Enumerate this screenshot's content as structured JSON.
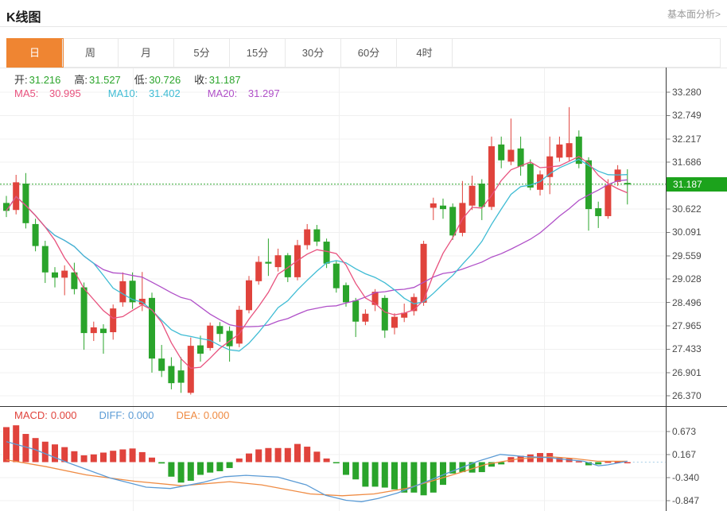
{
  "header": {
    "title": "K线图",
    "link": "基本面分析>"
  },
  "tabs": [
    {
      "label": "日",
      "active": true
    },
    {
      "label": "周",
      "active": false
    },
    {
      "label": "月",
      "active": false
    },
    {
      "label": "5分",
      "active": false
    },
    {
      "label": "15分",
      "active": false
    },
    {
      "label": "30分",
      "active": false
    },
    {
      "label": "60分",
      "active": false
    },
    {
      "label": "4时",
      "active": false
    }
  ],
  "info": {
    "open_label": "开:",
    "open": "31.216",
    "high_label": "高:",
    "high": "31.527",
    "low_label": "低:",
    "low": "30.726",
    "close_label": "收:",
    "close": "31.187"
  },
  "ma": {
    "ma5_label": "MA5:",
    "ma5_value": "30.995",
    "ma10_label": "MA10:",
    "ma10_value": "31.402",
    "ma20_label": "MA20:",
    "ma20_value": "31.297"
  },
  "macd_info": {
    "macd_label": "MACD:",
    "macd_value": "0.000",
    "diff_label": "DIFF:",
    "diff_value": "0.000",
    "dea_label": "DEA:",
    "dea_value": "0.000"
  },
  "colors": {
    "up": "#e0433c",
    "down": "#2aa42b",
    "ma5": "#e8527e",
    "ma10": "#3fbcd4",
    "ma20": "#b050c8",
    "diff": "#5b9bd5",
    "dea": "#ef8b43",
    "price_line": "#2aa42b",
    "price_tag_bg": "#1ca31c",
    "tab_active_bg": "#ef8532",
    "value_green": "#2ba52b",
    "grid": "#f0f0f0",
    "axis": "#3a3a3a",
    "zero_proj": "#a9cfe8"
  },
  "chart_data": {
    "type": "candlestick+macd",
    "main": {
      "title": "K线图",
      "period": "日",
      "y_axis": [
        33.28,
        32.749,
        32.217,
        31.686,
        30.622,
        30.091,
        29.559,
        29.028,
        28.496,
        27.965,
        27.433,
        26.901,
        26.37
      ],
      "current_price": 31.187,
      "ohlc_last": {
        "open": 31.216,
        "high": 31.527,
        "low": 30.726,
        "close": 31.187
      },
      "ma_periods": [
        5,
        10,
        20
      ],
      "ma_last_values": {
        "ma5": 30.995,
        "ma10": 31.402,
        "ma20": 31.297
      },
      "candles": [
        [
          30.76,
          30.92,
          30.44,
          30.58
        ],
        [
          30.6,
          31.4,
          30.5,
          31.23
        ],
        [
          31.2,
          31.44,
          30.18,
          30.3
        ],
        [
          30.28,
          30.4,
          29.66,
          29.78
        ],
        [
          29.78,
          29.9,
          28.94,
          29.18
        ],
        [
          29.18,
          29.3,
          28.84,
          29.06
        ],
        [
          29.06,
          29.34,
          28.66,
          29.22
        ],
        [
          29.18,
          29.4,
          28.68,
          28.8
        ],
        [
          28.84,
          28.95,
          27.42,
          27.8
        ],
        [
          27.8,
          28.06,
          27.62,
          27.93
        ],
        [
          27.9,
          28.0,
          27.33,
          27.8
        ],
        [
          27.82,
          28.45,
          27.65,
          28.36
        ],
        [
          28.5,
          29.18,
          28.4,
          28.98
        ],
        [
          28.99,
          29.18,
          28.35,
          28.5
        ],
        [
          28.45,
          29.19,
          28.3,
          28.58
        ],
        [
          28.6,
          28.72,
          26.9,
          27.22
        ],
        [
          27.22,
          27.53,
          26.8,
          26.94
        ],
        [
          27.05,
          27.25,
          26.52,
          26.66
        ],
        [
          26.95,
          27.25,
          26.44,
          26.67
        ],
        [
          26.44,
          27.7,
          26.4,
          27.51
        ],
        [
          27.52,
          27.74,
          27.15,
          27.33
        ],
        [
          27.46,
          28.04,
          27.4,
          27.97
        ],
        [
          27.96,
          28.05,
          27.6,
          27.78
        ],
        [
          27.85,
          27.95,
          27.15,
          27.5
        ],
        [
          27.56,
          28.42,
          27.48,
          28.33
        ],
        [
          28.32,
          29.1,
          28.25,
          29.0
        ],
        [
          28.98,
          29.55,
          28.9,
          29.42
        ],
        [
          29.42,
          29.95,
          29.1,
          29.38
        ],
        [
          29.3,
          29.72,
          29.2,
          29.57
        ],
        [
          29.57,
          29.62,
          28.96,
          29.07
        ],
        [
          29.07,
          29.92,
          29.0,
          29.8
        ],
        [
          29.8,
          30.28,
          29.7,
          30.16
        ],
        [
          30.16,
          30.26,
          29.78,
          29.88
        ],
        [
          29.88,
          29.95,
          29.28,
          29.38
        ],
        [
          29.38,
          29.45,
          28.72,
          28.82
        ],
        [
          28.89,
          28.95,
          28.4,
          28.5
        ],
        [
          28.54,
          28.6,
          27.71,
          28.06
        ],
        [
          28.06,
          28.34,
          27.98,
          28.24
        ],
        [
          28.44,
          28.8,
          28.3,
          28.74
        ],
        [
          28.6,
          28.66,
          27.69,
          27.86
        ],
        [
          27.92,
          28.25,
          27.77,
          28.17
        ],
        [
          28.15,
          28.47,
          28.05,
          28.26
        ],
        [
          28.3,
          28.7,
          28.2,
          28.62
        ],
        [
          28.49,
          29.9,
          28.42,
          29.83
        ],
        [
          30.65,
          30.88,
          30.37,
          30.75
        ],
        [
          30.7,
          30.86,
          30.4,
          30.62
        ],
        [
          30.67,
          30.75,
          29.92,
          30.02
        ],
        [
          30.08,
          31.26,
          30.0,
          30.76
        ],
        [
          30.7,
          31.38,
          30.6,
          31.15
        ],
        [
          31.2,
          31.3,
          30.37,
          30.67
        ],
        [
          30.67,
          32.27,
          30.6,
          32.05
        ],
        [
          32.09,
          32.27,
          31.55,
          31.73
        ],
        [
          31.7,
          32.68,
          31.62,
          31.97
        ],
        [
          32.0,
          32.27,
          31.38,
          31.59
        ],
        [
          31.65,
          31.75,
          31.05,
          31.11
        ],
        [
          31.06,
          31.5,
          30.93,
          31.41
        ],
        [
          31.35,
          32.27,
          30.96,
          31.82
        ],
        [
          31.79,
          32.27,
          31.7,
          32.09
        ],
        [
          31.8,
          32.94,
          31.72,
          32.12
        ],
        [
          32.27,
          32.41,
          31.55,
          31.65
        ],
        [
          31.73,
          31.8,
          30.13,
          30.62
        ],
        [
          30.64,
          30.79,
          30.19,
          30.46
        ],
        [
          30.46,
          31.3,
          30.4,
          31.17
        ],
        [
          31.24,
          31.62,
          31.15,
          31.52
        ],
        [
          31.216,
          31.527,
          30.726,
          31.187
        ]
      ]
    },
    "macd": {
      "y_axis": [
        0.673,
        0.167,
        -0.34,
        -0.847
      ],
      "last_values": {
        "macd": 0.0,
        "diff": 0.0,
        "dea": 0.0
      },
      "bars": [
        0.77,
        0.81,
        0.62,
        0.53,
        0.45,
        0.39,
        0.33,
        0.24,
        0.15,
        0.17,
        0.21,
        0.25,
        0.28,
        0.3,
        0.22,
        0.1,
        -0.03,
        -0.32,
        -0.45,
        -0.41,
        -0.28,
        -0.23,
        -0.2,
        -0.13,
        0.08,
        0.19,
        0.28,
        0.31,
        0.31,
        0.31,
        0.4,
        0.34,
        0.23,
        0.08,
        -0.02,
        -0.28,
        -0.38,
        -0.54,
        -0.54,
        -0.56,
        -0.6,
        -0.67,
        -0.67,
        -0.73,
        -0.67,
        -0.5,
        -0.25,
        -0.22,
        -0.23,
        -0.22,
        -0.1,
        -0.05,
        0.11,
        0.14,
        0.17,
        0.2,
        0.2,
        0.1,
        0.08,
        0.02,
        -0.07,
        -0.05,
        0.01,
        0.01,
        0.0
      ],
      "diff_points": [
        [
          0,
          0.45
        ],
        [
          2.9,
          0.28
        ],
        [
          6.2,
          0.0
        ],
        [
          10.7,
          -0.35
        ],
        [
          14.4,
          -0.55
        ],
        [
          16.9,
          -0.58
        ],
        [
          20.2,
          -0.45
        ],
        [
          22.5,
          -0.32
        ],
        [
          24.7,
          -0.29
        ],
        [
          28,
          -0.33
        ],
        [
          30.9,
          -0.5
        ],
        [
          32.9,
          -0.73
        ],
        [
          35,
          -0.84
        ],
        [
          36.6,
          -0.87
        ],
        [
          38.3,
          -0.8
        ],
        [
          40.3,
          -0.68
        ],
        [
          42.8,
          -0.47
        ],
        [
          45.7,
          -0.22
        ],
        [
          48.6,
          0.02
        ],
        [
          50.9,
          0.17
        ],
        [
          53.5,
          0.12
        ],
        [
          56,
          0.1
        ],
        [
          57.5,
          0.06
        ],
        [
          59.5,
          0.02
        ],
        [
          61,
          -0.08
        ],
        [
          62,
          -0.06
        ],
        [
          64,
          0.02
        ]
      ],
      "dea_points": [
        [
          0,
          0.05
        ],
        [
          4.1,
          -0.1
        ],
        [
          8.2,
          -0.28
        ],
        [
          13.2,
          -0.42
        ],
        [
          18.1,
          -0.52
        ],
        [
          23,
          -0.43
        ],
        [
          26.3,
          -0.5
        ],
        [
          31.3,
          -0.7
        ],
        [
          34.6,
          -0.74
        ],
        [
          37.9,
          -0.7
        ],
        [
          41.2,
          -0.58
        ],
        [
          44.4,
          -0.38
        ],
        [
          46.9,
          -0.22
        ],
        [
          49.4,
          -0.05
        ],
        [
          52.7,
          0.07
        ],
        [
          56,
          0.12
        ],
        [
          58.4,
          0.08
        ],
        [
          60.9,
          0.02
        ],
        [
          64,
          0.02
        ]
      ]
    }
  }
}
